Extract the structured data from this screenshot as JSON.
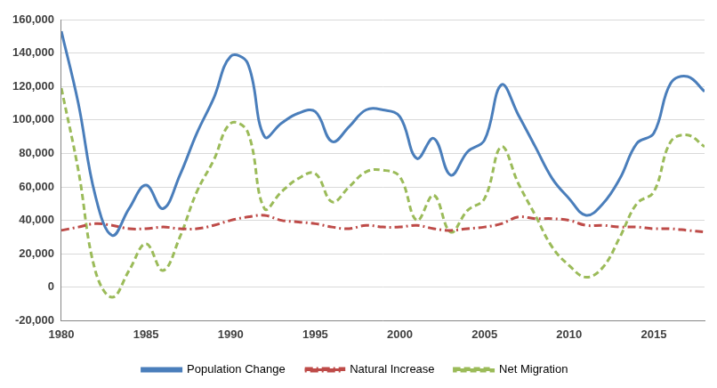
{
  "chart_data": {
    "type": "line",
    "x": [
      1980,
      1981,
      1982,
      1983,
      1984,
      1985,
      1986,
      1987,
      1988,
      1989,
      1990,
      1991,
      1992,
      1993,
      1994,
      1995,
      1996,
      1997,
      1998,
      1999,
      2000,
      2001,
      2002,
      2003,
      2004,
      2005,
      2006,
      2007,
      2008,
      2009,
      2010,
      2011,
      2012,
      2013,
      2014,
      2015,
      2016,
      2017,
      2018
    ],
    "series": [
      {
        "name": "Population Change",
        "color": "#4a7ebb",
        "line_style": "solid",
        "values": [
          153000,
          110000,
          55000,
          31000,
          47000,
          61000,
          47000,
          67000,
          92000,
          113000,
          138000,
          134000,
          90000,
          98000,
          104000,
          105000,
          87000,
          96000,
          106000,
          106000,
          102000,
          77000,
          89000,
          67000,
          81000,
          88000,
          121000,
          103000,
          84000,
          65000,
          53000,
          43000,
          50000,
          65000,
          86000,
          92000,
          122000,
          126000,
          117000
        ]
      },
      {
        "name": "Natural Increase",
        "color": "#be4b48",
        "line_style": "dash_dot",
        "values": [
          34000,
          36000,
          38000,
          37000,
          35000,
          35000,
          36000,
          35000,
          35000,
          37000,
          40000,
          42000,
          43000,
          40000,
          39000,
          38000,
          36000,
          35000,
          37000,
          36000,
          36000,
          37000,
          35000,
          34000,
          35000,
          36000,
          38000,
          42000,
          41000,
          41000,
          40000,
          37000,
          37000,
          36000,
          36000,
          35000,
          35000,
          34000,
          33000
        ]
      },
      {
        "name": "Net Migration",
        "color": "#9bbb59",
        "line_style": "dashed",
        "values": [
          119000,
          70000,
          10000,
          -6000,
          10000,
          26000,
          10000,
          30000,
          57000,
          76000,
          98000,
          93000,
          47000,
          57000,
          65000,
          68000,
          51000,
          60000,
          69000,
          70000,
          66000,
          40000,
          55000,
          33000,
          46000,
          53000,
          84000,
          62000,
          43000,
          24000,
          13000,
          6000,
          12000,
          30000,
          50000,
          57000,
          87000,
          91000,
          84000
        ]
      }
    ],
    "xlim": [
      1980,
      2018
    ],
    "xticks": [
      1980,
      1985,
      1990,
      1995,
      2000,
      2005,
      2010,
      2015
    ],
    "ylim": [
      -20000,
      160000
    ],
    "yticks": [
      {
        "value": -20000,
        "label": "-20,000"
      },
      0,
      {
        "value": 20000,
        "label": "20,000"
      },
      {
        "value": 40000,
        "label": "40,000"
      },
      {
        "value": 60000,
        "label": "60,000"
      },
      {
        "value": 80000,
        "label": "80,000"
      },
      {
        "value": 100000,
        "label": "100,000"
      },
      {
        "value": 120000,
        "label": "120,000"
      },
      {
        "value": 140000,
        "label": "140,000"
      },
      {
        "value": 160000,
        "label": "160,000"
      }
    ],
    "grid": true,
    "legend": "bottom"
  }
}
